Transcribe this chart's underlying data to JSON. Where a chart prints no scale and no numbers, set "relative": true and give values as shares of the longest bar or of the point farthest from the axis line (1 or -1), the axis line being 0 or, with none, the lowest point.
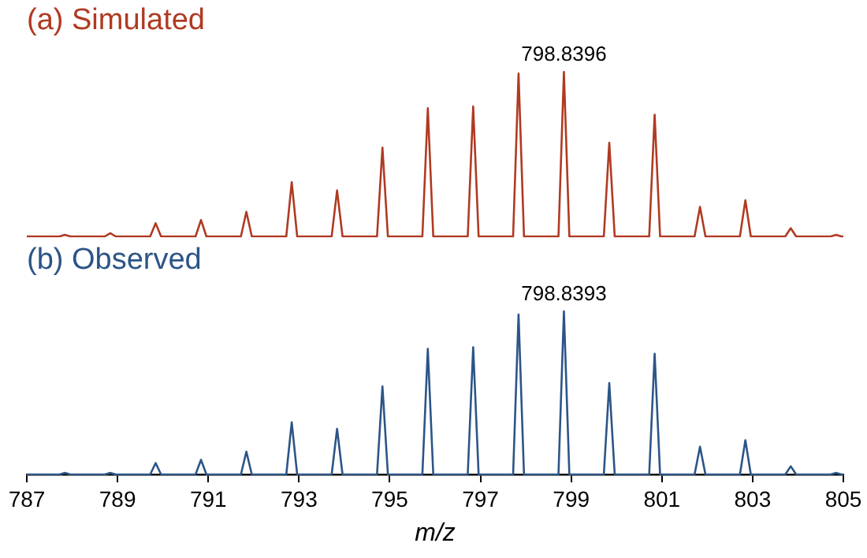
{
  "chart_data": [
    {
      "type": "line",
      "title": "(a) Simulated",
      "relative": true,
      "grid": false,
      "legend": false,
      "tick_labels": false,
      "xlim": [
        787,
        805
      ],
      "x": [
        787,
        787.72,
        787.84,
        787.96,
        788.72,
        788.84,
        788.96,
        789.72,
        789.84,
        789.96,
        790.72,
        790.84,
        790.96,
        791.72,
        791.84,
        791.96,
        792.72,
        792.84,
        792.96,
        793.72,
        793.84,
        793.96,
        794.72,
        794.84,
        794.96,
        795.72,
        795.84,
        795.96,
        796.72,
        796.84,
        796.96,
        797.72,
        797.84,
        797.96,
        798.72,
        798.84,
        798.96,
        799.72,
        799.84,
        799.96,
        800.72,
        800.84,
        800.96,
        801.72,
        801.84,
        801.96,
        802.72,
        802.84,
        802.96,
        803.72,
        803.84,
        803.96,
        804.72,
        804.84,
        804.96,
        805
      ],
      "series": [
        {
          "color": "#b03a22",
          "values": [
            0,
            0,
            0.01,
            0,
            0,
            0.02,
            0,
            0,
            0.08,
            0,
            0,
            0.1,
            0,
            0,
            0.15,
            0,
            0,
            0.33,
            0,
            0,
            0.28,
            0,
            0,
            0.54,
            0,
            0,
            0.78,
            0,
            0,
            0.79,
            0,
            0,
            0.99,
            0,
            0,
            1,
            0,
            0,
            0.57,
            0,
            0,
            0.74,
            0,
            0,
            0.18,
            0,
            0,
            0.22,
            0,
            0,
            0.05,
            0,
            0,
            0.01,
            0,
            0
          ]
        }
      ],
      "annotations": [
        {
          "text": "798.8396",
          "x": 798.84,
          "y": 1
        }
      ]
    },
    {
      "type": "line",
      "title": "(b) Observed",
      "xlabel": "m/z",
      "relative": true,
      "grid": false,
      "legend": false,
      "tick_labels": "x",
      "xlim": [
        787,
        805
      ],
      "xticks": [
        787,
        789,
        791,
        793,
        795,
        797,
        799,
        801,
        803,
        805
      ],
      "x": [
        787,
        787.72,
        787.84,
        787.96,
        788.72,
        788.84,
        788.96,
        789.72,
        789.84,
        789.96,
        790.72,
        790.84,
        790.96,
        791.72,
        791.84,
        791.96,
        792.72,
        792.84,
        792.96,
        793.72,
        793.84,
        793.96,
        794.72,
        794.84,
        794.96,
        795.72,
        795.84,
        795.96,
        796.72,
        796.84,
        796.96,
        797.72,
        797.84,
        797.96,
        798.72,
        798.84,
        798.96,
        799.72,
        799.84,
        799.96,
        800.72,
        800.84,
        800.96,
        801.72,
        801.84,
        801.96,
        802.72,
        802.84,
        802.96,
        803.72,
        803.84,
        803.96,
        804.72,
        804.84,
        804.96,
        805
      ],
      "series": [
        {
          "color": "#2c5587",
          "values": [
            0,
            0,
            0.01,
            0,
            0,
            0.01,
            0,
            0,
            0.07,
            0,
            0,
            0.09,
            0,
            0,
            0.14,
            0,
            0,
            0.32,
            0,
            0,
            0.28,
            0,
            0,
            0.54,
            0,
            0,
            0.77,
            0,
            0,
            0.78,
            0,
            0,
            0.98,
            0,
            0,
            1,
            0,
            0,
            0.56,
            0,
            0,
            0.74,
            0,
            0,
            0.17,
            0,
            0,
            0.21,
            0,
            0,
            0.05,
            0,
            0,
            0.01,
            0,
            0
          ]
        }
      ],
      "annotations": [
        {
          "text": "798.8393",
          "x": 798.84,
          "y": 1
        }
      ]
    }
  ]
}
